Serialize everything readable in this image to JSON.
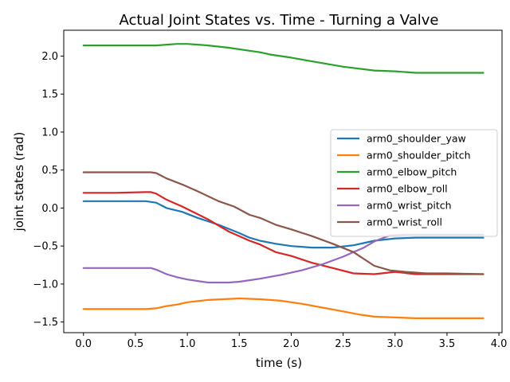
{
  "chart_data": {
    "type": "line",
    "title": "Actual Joint States vs. Time - Turning a Valve",
    "xlabel": "time (s)",
    "ylabel": "joint states (rad)",
    "xlim": [
      -0.19,
      4.03
    ],
    "ylim": [
      -1.64,
      2.34
    ],
    "xticks": [
      0.0,
      0.5,
      1.0,
      1.5,
      2.0,
      2.5,
      3.0,
      3.5,
      4.0
    ],
    "xtick_labels": [
      "0.0",
      "0.5",
      "1.0",
      "1.5",
      "2.0",
      "2.5",
      "3.0",
      "3.5",
      "4.0"
    ],
    "yticks": [
      -1.5,
      -1.0,
      -0.5,
      0.0,
      0.5,
      1.0,
      1.5,
      2.0
    ],
    "ytick_labels": [
      "−1.5",
      "−1.0",
      "−0.5",
      "0.0",
      "0.5",
      "1.0",
      "1.5",
      "2.0"
    ],
    "grid": false,
    "legend_position": "center-right",
    "series": [
      {
        "name": "arm0_shoulder_yaw",
        "color": "#1f77b4",
        "x": [
          0.0,
          0.3,
          0.6,
          0.7,
          0.8,
          0.95,
          1.1,
          1.3,
          1.5,
          1.6,
          1.7,
          1.85,
          2.0,
          2.2,
          2.4,
          2.6,
          2.8,
          3.0,
          3.2,
          3.5,
          3.85
        ],
        "y": [
          0.09,
          0.09,
          0.09,
          0.07,
          0.0,
          -0.05,
          -0.13,
          -0.22,
          -0.33,
          -0.39,
          -0.43,
          -0.47,
          -0.5,
          -0.52,
          -0.52,
          -0.49,
          -0.43,
          -0.4,
          -0.39,
          -0.39,
          -0.39
        ]
      },
      {
        "name": "arm0_shoulder_pitch",
        "color": "#ff7f0e",
        "x": [
          0.0,
          0.3,
          0.6,
          0.7,
          0.8,
          0.9,
          1.0,
          1.2,
          1.5,
          1.7,
          1.9,
          2.1,
          2.3,
          2.5,
          2.65,
          2.8,
          3.0,
          3.2,
          3.5,
          3.85
        ],
        "y": [
          -1.33,
          -1.33,
          -1.33,
          -1.32,
          -1.29,
          -1.27,
          -1.24,
          -1.21,
          -1.19,
          -1.2,
          -1.22,
          -1.26,
          -1.31,
          -1.36,
          -1.4,
          -1.43,
          -1.44,
          -1.45,
          -1.45,
          -1.45
        ]
      },
      {
        "name": "arm0_elbow_pitch",
        "color": "#2ca02c",
        "x": [
          0.0,
          0.3,
          0.6,
          0.7,
          0.8,
          0.9,
          1.0,
          1.2,
          1.4,
          1.6,
          1.7,
          1.8,
          2.0,
          2.2,
          2.5,
          2.8,
          3.0,
          3.2,
          3.5,
          3.85
        ],
        "y": [
          2.14,
          2.14,
          2.14,
          2.14,
          2.15,
          2.16,
          2.16,
          2.14,
          2.11,
          2.07,
          2.05,
          2.02,
          1.98,
          1.93,
          1.86,
          1.81,
          1.8,
          1.78,
          1.78,
          1.78
        ]
      },
      {
        "name": "arm0_elbow_roll",
        "color": "#d62728",
        "x": [
          0.0,
          0.3,
          0.6,
          0.65,
          0.7,
          0.8,
          0.95,
          1.2,
          1.4,
          1.6,
          1.7,
          1.85,
          2.0,
          2.2,
          2.4,
          2.6,
          2.8,
          3.0,
          3.2,
          3.5,
          3.85
        ],
        "y": [
          0.2,
          0.2,
          0.21,
          0.21,
          0.19,
          0.11,
          0.02,
          -0.15,
          -0.31,
          -0.43,
          -0.48,
          -0.58,
          -0.63,
          -0.72,
          -0.79,
          -0.86,
          -0.87,
          -0.84,
          -0.87,
          -0.87,
          -0.87
        ]
      },
      {
        "name": "arm0_wrist_pitch",
        "color": "#9467bd",
        "x": [
          0.0,
          0.3,
          0.6,
          0.65,
          0.7,
          0.8,
          0.9,
          1.0,
          1.1,
          1.2,
          1.4,
          1.5,
          1.6,
          1.7,
          1.9,
          2.1,
          2.3,
          2.5,
          2.6,
          2.7,
          2.8,
          2.95,
          3.1,
          3.5,
          3.85
        ],
        "y": [
          -0.79,
          -0.79,
          -0.79,
          -0.79,
          -0.81,
          -0.87,
          -0.91,
          -0.94,
          -0.96,
          -0.98,
          -0.98,
          -0.97,
          -0.95,
          -0.93,
          -0.88,
          -0.82,
          -0.74,
          -0.64,
          -0.58,
          -0.52,
          -0.44,
          -0.36,
          -0.35,
          -0.35,
          -0.35
        ]
      },
      {
        "name": "arm0_wrist_roll",
        "color": "#8c564b",
        "x": [
          0.0,
          0.3,
          0.6,
          0.65,
          0.7,
          0.8,
          0.95,
          1.1,
          1.3,
          1.45,
          1.6,
          1.7,
          1.85,
          2.0,
          2.2,
          2.4,
          2.6,
          2.8,
          2.95,
          3.1,
          3.3,
          3.5,
          3.85
        ],
        "y": [
          0.47,
          0.47,
          0.47,
          0.47,
          0.46,
          0.39,
          0.31,
          0.22,
          0.09,
          0.02,
          -0.09,
          -0.13,
          -0.22,
          -0.28,
          -0.37,
          -0.47,
          -0.58,
          -0.76,
          -0.82,
          -0.84,
          -0.86,
          -0.86,
          -0.87
        ]
      }
    ]
  }
}
